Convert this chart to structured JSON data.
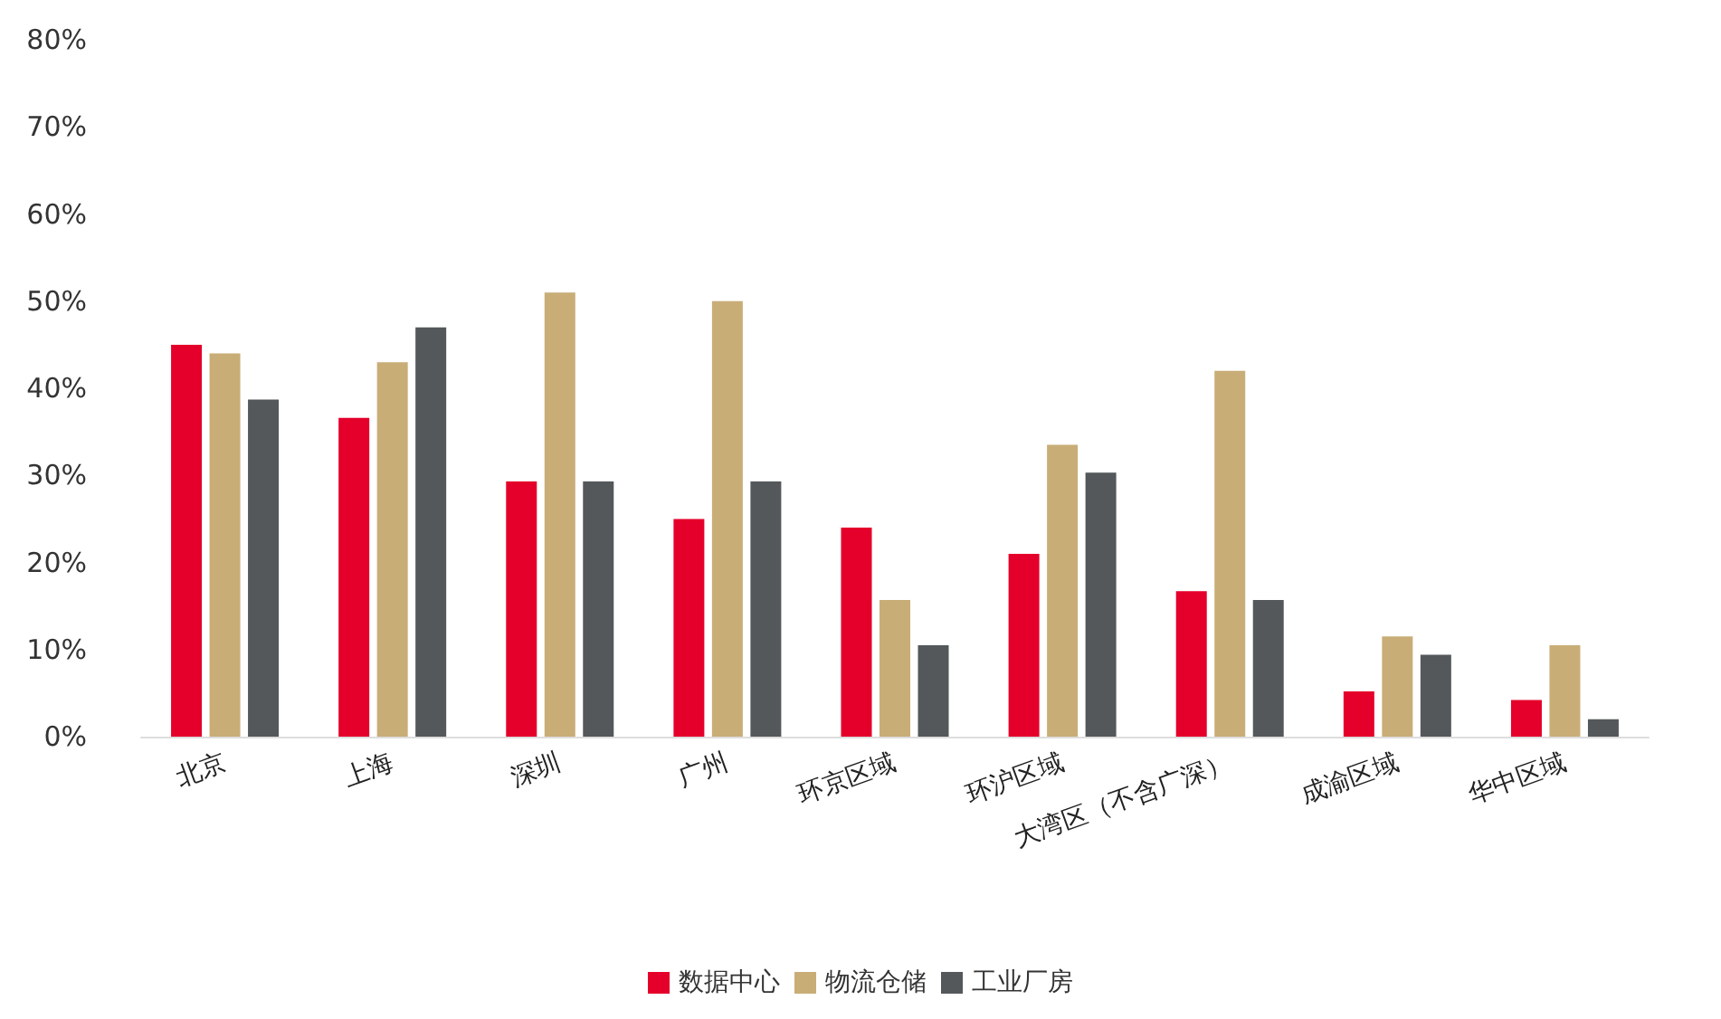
{
  "chart_data": {
    "type": "bar",
    "categories": [
      "北京",
      "上海",
      "深圳",
      "广州",
      "环京区域",
      "环沪区域",
      "大湾区（不含广深）",
      "成渝区域",
      "华中区域"
    ],
    "series": [
      {
        "name": "数据中心",
        "color": "#e4002b",
        "values": [
          45,
          36.6,
          29.3,
          25,
          24,
          21,
          16.7,
          5.2,
          4.2
        ]
      },
      {
        "name": "物流仓储",
        "color": "#c9ad77",
        "values": [
          44,
          43,
          51,
          50,
          15.7,
          33.5,
          42,
          11.5,
          10.5
        ]
      },
      {
        "name": "工业厂房",
        "color": "#54585a",
        "values": [
          38.7,
          47,
          29.3,
          29.3,
          10.5,
          30.3,
          15.7,
          9.4,
          2
        ]
      }
    ],
    "ylim": [
      0,
      80
    ],
    "yticks": [
      {
        "value": 0,
        "label": "0%"
      },
      {
        "value": 10,
        "label": "10%"
      },
      {
        "value": 20,
        "label": "20%"
      },
      {
        "value": 30,
        "label": "30%"
      },
      {
        "value": 40,
        "label": "40%"
      },
      {
        "value": 50,
        "label": "50%"
      },
      {
        "value": 60,
        "label": "60%"
      },
      {
        "value": 70,
        "label": "70%"
      },
      {
        "value": 80,
        "label": "80%"
      }
    ],
    "grid": false,
    "legend": "bottom"
  }
}
